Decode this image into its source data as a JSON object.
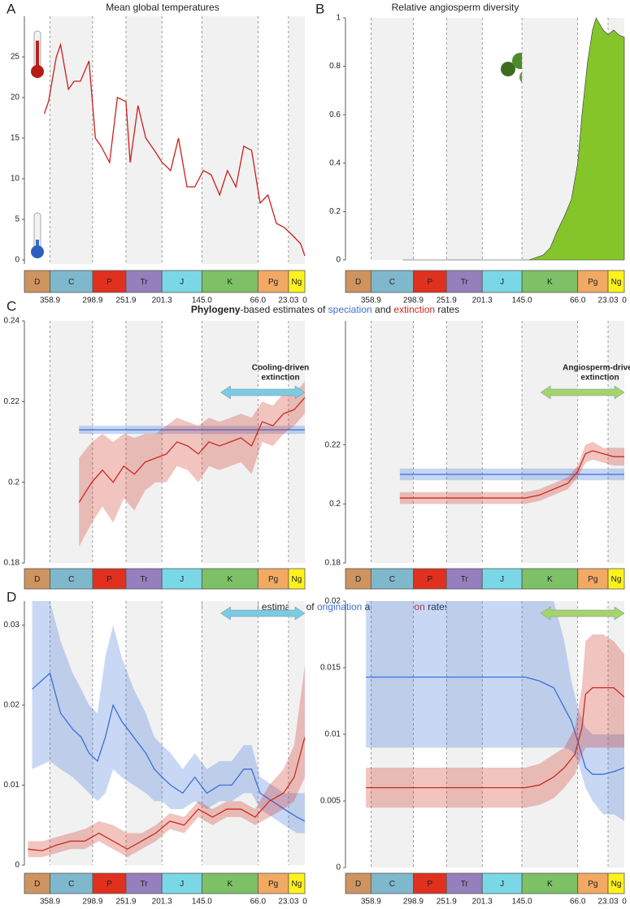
{
  "periods": [
    {
      "name": "D",
      "color": "#cd9460"
    },
    {
      "name": "C",
      "color": "#7fb8cc"
    },
    {
      "name": "P",
      "color": "#e0301e"
    },
    {
      "name": "Tr",
      "color": "#9580bd"
    },
    {
      "name": "J",
      "color": "#7ad8e6"
    },
    {
      "name": "K",
      "color": "#7dc065"
    },
    {
      "name": "Pg",
      "color": "#f2a963"
    },
    {
      "name": "Ng",
      "color": "#fff21c"
    }
  ],
  "headings": [
    {
      "parts": [
        {
          "text": "Phylogeny",
          "bold": true
        },
        {
          "text": "-based estimates of "
        },
        {
          "text": "speciation",
          "color": "#3b6fd8"
        },
        {
          "text": " and "
        },
        {
          "text": "extinction",
          "color": "#cc2a1e"
        },
        {
          "text": " rates"
        }
      ]
    },
    {
      "parts": [
        {
          "text": "Fossil",
          "bold": true
        },
        {
          "text": "-based estimates of "
        },
        {
          "text": "origination",
          "color": "#3b6fd8"
        },
        {
          "text": " and "
        },
        {
          "text": "extinction",
          "color": "#cc2a1e"
        },
        {
          "text": " rates"
        }
      ]
    }
  ],
  "chart_data": [
    {
      "type": "line",
      "panel_label": "A",
      "title": "Mean global temperatures",
      "xlim": [
        395,
        0
      ],
      "xticks": [
        358.9,
        298.9,
        251.9,
        201.3,
        {
          "value": 145,
          "label": "145.0"
        },
        {
          "value": 66,
          "label": "66.0"
        },
        23.03,
        0
      ],
      "ylim": [
        -0.5,
        30
      ],
      "yticks": [
        0,
        5,
        10,
        15,
        20,
        25
      ],
      "show_xtick_labels": true,
      "series": [
        {
          "color": "#cc1f1a",
          "x": [
            367,
            361,
            350,
            344,
            333,
            325,
            316,
            304,
            295,
            287,
            275,
            264,
            252,
            246,
            235,
            224,
            212,
            201,
            189,
            178,
            166,
            155,
            143,
            132,
            120,
            109,
            97,
            86,
            75,
            63,
            52,
            40,
            29,
            17,
            6,
            0
          ],
          "values": [
            18,
            19.5,
            25,
            26.5,
            21,
            22,
            22,
            24.5,
            15,
            14,
            12,
            20,
            19.5,
            12,
            19,
            15,
            13.5,
            12,
            11,
            15,
            9,
            9,
            11,
            10.5,
            8,
            11,
            9,
            14,
            13.5,
            7,
            8,
            4.5,
            4,
            3,
            2,
            0.5
          ]
        }
      ]
    },
    {
      "type": "area",
      "panel_label": "B",
      "title": "Relative angiosperm diversity",
      "xlim": [
        395,
        0
      ],
      "xticks": [
        358.9,
        298.9,
        251.9,
        201.3,
        {
          "value": 145,
          "label": "145.0"
        },
        {
          "value": 66,
          "label": "66.0"
        },
        23.03,
        0
      ],
      "ylim": [
        0,
        1
      ],
      "yticks": [
        0,
        0.2,
        0.4,
        0.6,
        0.8,
        1
      ],
      "show_xtick_labels": true,
      "series": [
        {
          "color": "#84c52a",
          "x": [
            314,
            200,
            135,
            125,
            115,
            105,
            95,
            85,
            75,
            66,
            60,
            52,
            45,
            40,
            30,
            23,
            15,
            8,
            0
          ],
          "values": [
            0,
            0,
            0,
            0.01,
            0.02,
            0.05,
            0.12,
            0.18,
            0.25,
            0.4,
            0.6,
            0.82,
            0.95,
            1,
            0.95,
            0.93,
            0.95,
            0.93,
            0.92
          ]
        }
      ]
    },
    {
      "type": "line",
      "panel_label": "C",
      "xlim": [
        395,
        0
      ],
      "xticks": [
        358.9,
        298.9,
        251.9,
        201.3,
        {
          "value": 145,
          "label": "145.0"
        },
        {
          "value": 66,
          "label": "66.0"
        },
        23.03,
        0
      ],
      "ylim": [
        0.18,
        0.24
      ],
      "yticks": [
        0.18,
        0.2,
        0.22,
        0.24
      ],
      "show_xtick_labels": false,
      "annotation": [
        "Cooling-driven",
        "extinction"
      ],
      "arrow_color": "#7ccbe3",
      "series": [
        {
          "color": "#3b6fd8",
          "x": [
            318,
            0
          ],
          "values": [
            0.213,
            0.213
          ],
          "lower": [
            0.212,
            0.212
          ],
          "upper": [
            0.214,
            0.214
          ]
        },
        {
          "color": "#cc2a1e",
          "x": [
            318,
            300,
            285,
            270,
            255,
            240,
            225,
            210,
            195,
            180,
            165,
            150,
            135,
            120,
            105,
            90,
            75,
            60,
            45,
            30,
            15,
            0
          ],
          "values": [
            0.195,
            0.2,
            0.203,
            0.2,
            0.204,
            0.202,
            0.205,
            0.206,
            0.207,
            0.21,
            0.209,
            0.207,
            0.21,
            0.209,
            0.21,
            0.211,
            0.209,
            0.215,
            0.214,
            0.217,
            0.218,
            0.221
          ],
          "lower": [
            0.184,
            0.19,
            0.194,
            0.19,
            0.196,
            0.193,
            0.198,
            0.2,
            0.2,
            0.204,
            0.203,
            0.2,
            0.204,
            0.203,
            0.204,
            0.205,
            0.202,
            0.21,
            0.209,
            0.212,
            0.214,
            0.217
          ],
          "upper": [
            0.206,
            0.21,
            0.212,
            0.21,
            0.212,
            0.211,
            0.212,
            0.212,
            0.214,
            0.216,
            0.215,
            0.214,
            0.216,
            0.215,
            0.216,
            0.217,
            0.216,
            0.22,
            0.219,
            0.222,
            0.222,
            0.225
          ]
        }
      ]
    },
    {
      "type": "line",
      "xlim": [
        395,
        0
      ],
      "xticks": [
        358.9,
        298.9,
        251.9,
        201.3,
        {
          "value": 145,
          "label": "145.0"
        },
        {
          "value": 66,
          "label": "66.0"
        },
        23.03,
        0
      ],
      "ylim": [
        0.18,
        0.262
      ],
      "yticks": [
        0.18,
        0.2,
        0.22
      ],
      "show_xtick_labels": false,
      "annotation": [
        "Angiosperm-driven",
        "extinction"
      ],
      "arrow_color": "#a6d46a",
      "series": [
        {
          "color": "#3b6fd8",
          "x": [
            318,
            0
          ],
          "values": [
            0.21,
            0.21
          ],
          "lower": [
            0.208,
            0.208
          ],
          "upper": [
            0.212,
            0.212
          ]
        },
        {
          "color": "#cc2a1e",
          "x": [
            318,
            250,
            200,
            140,
            120,
            100,
            80,
            66,
            55,
            45,
            30,
            15,
            0
          ],
          "values": [
            0.202,
            0.202,
            0.202,
            0.202,
            0.203,
            0.205,
            0.207,
            0.211,
            0.217,
            0.218,
            0.217,
            0.216,
            0.216
          ],
          "lower": [
            0.2,
            0.2,
            0.2,
            0.2,
            0.201,
            0.203,
            0.205,
            0.209,
            0.214,
            0.215,
            0.214,
            0.213,
            0.213
          ],
          "upper": [
            0.204,
            0.204,
            0.204,
            0.204,
            0.205,
            0.207,
            0.209,
            0.213,
            0.22,
            0.221,
            0.219,
            0.219,
            0.219
          ]
        }
      ]
    },
    {
      "type": "line",
      "panel_label": "D",
      "xlim": [
        395,
        0
      ],
      "xticks": [
        358.9,
        298.9,
        251.9,
        201.3,
        {
          "value": 145,
          "label": "145.0"
        },
        {
          "value": 66,
          "label": "66.0"
        },
        23.03,
        0
      ],
      "ylim": [
        0,
        0.033
      ],
      "yticks": [
        0,
        0.01,
        0.02,
        0.03
      ],
      "show_xtick_labels": true,
      "arrow_color": "#7ccbe3",
      "series": [
        {
          "color": "#3b6fd8",
          "x": [
            384,
            359,
            344,
            327,
            315,
            304,
            292,
            281,
            270,
            258,
            241,
            224,
            212,
            201,
            189,
            172,
            155,
            138,
            120,
            103,
            86,
            75,
            63,
            46,
            29,
            11,
            0
          ],
          "values": [
            0.022,
            0.024,
            0.019,
            0.017,
            0.016,
            0.014,
            0.013,
            0.016,
            0.02,
            0.018,
            0.016,
            0.014,
            0.012,
            0.011,
            0.01,
            0.009,
            0.011,
            0.009,
            0.01,
            0.01,
            0.012,
            0.012,
            0.009,
            0.008,
            0.007,
            0.006,
            0.0055
          ],
          "lower": [
            0.012,
            0.013,
            0.012,
            0.011,
            0.01,
            0.009,
            0.008,
            0.009,
            0.012,
            0.011,
            0.01,
            0.009,
            0.008,
            0.008,
            0.007,
            0.007,
            0.008,
            0.007,
            0.008,
            0.008,
            0.009,
            0.009,
            0.007,
            0.006,
            0.005,
            0.004,
            0.004
          ],
          "upper": [
            0.033,
            0.033,
            0.028,
            0.024,
            0.022,
            0.02,
            0.019,
            0.026,
            0.03,
            0.026,
            0.022,
            0.019,
            0.016,
            0.015,
            0.014,
            0.012,
            0.014,
            0.012,
            0.013,
            0.013,
            0.015,
            0.015,
            0.011,
            0.01,
            0.009,
            0.009,
            0.009
          ]
        },
        {
          "color": "#cc2a1e",
          "x": [
            390,
            370,
            350,
            330,
            310,
            290,
            270,
            250,
            230,
            210,
            190,
            170,
            150,
            130,
            110,
            90,
            70,
            50,
            30,
            15,
            0
          ],
          "values": [
            0.002,
            0.0018,
            0.0025,
            0.003,
            0.003,
            0.004,
            0.003,
            0.002,
            0.003,
            0.004,
            0.0055,
            0.005,
            0.007,
            0.006,
            0.007,
            0.007,
            0.006,
            0.008,
            0.009,
            0.011,
            0.016
          ],
          "lower": [
            0.001,
            0.001,
            0.0015,
            0.002,
            0.002,
            0.003,
            0.002,
            0.001,
            0.002,
            0.003,
            0.0045,
            0.004,
            0.006,
            0.005,
            0.006,
            0.006,
            0.005,
            0.006,
            0.007,
            0.008,
            0.011
          ],
          "upper": [
            0.003,
            0.003,
            0.0035,
            0.004,
            0.0045,
            0.0055,
            0.005,
            0.004,
            0.004,
            0.005,
            0.0065,
            0.006,
            0.008,
            0.007,
            0.008,
            0.008,
            0.007,
            0.01,
            0.012,
            0.015,
            0.025
          ]
        }
      ]
    },
    {
      "type": "line",
      "xlim": [
        395,
        0
      ],
      "xticks": [
        358.9,
        298.9,
        251.9,
        201.3,
        {
          "value": 145,
          "label": "145.0"
        },
        {
          "value": 66,
          "label": "66.0"
        },
        23.03,
        0
      ],
      "ylim": [
        0,
        0.02
      ],
      "yticks": [
        0,
        0.005,
        0.01,
        0.015,
        0.02
      ],
      "show_xtick_labels": true,
      "arrow_color": "#a6d46a",
      "series": [
        {
          "color": "#3b6fd8",
          "x": [
            366,
            140,
            120,
            100,
            85,
            75,
            66,
            55,
            45,
            30,
            15,
            0
          ],
          "values": [
            0.0143,
            0.0143,
            0.014,
            0.0135,
            0.012,
            0.011,
            0.0095,
            0.0075,
            0.007,
            0.007,
            0.0072,
            0.0075
          ],
          "lower": [
            0.009,
            0.009,
            0.009,
            0.009,
            0.009,
            0.0088,
            0.008,
            0.006,
            0.005,
            0.004,
            0.004,
            0.0035
          ],
          "upper": [
            0.02,
            0.02,
            0.02,
            0.02,
            0.017,
            0.014,
            0.012,
            0.0105,
            0.01,
            0.01,
            0.01,
            0.01
          ]
        },
        {
          "color": "#cc2a1e",
          "x": [
            366,
            140,
            120,
            100,
            85,
            70,
            60,
            55,
            45,
            30,
            15,
            0
          ],
          "values": [
            0.006,
            0.006,
            0.0062,
            0.0068,
            0.0075,
            0.0085,
            0.0105,
            0.013,
            0.0135,
            0.0135,
            0.0135,
            0.0128
          ],
          "lower": [
            0.0045,
            0.0045,
            0.0047,
            0.0052,
            0.006,
            0.007,
            0.0085,
            0.009,
            0.009,
            0.009,
            0.009,
            0.009
          ],
          "upper": [
            0.0075,
            0.0075,
            0.0078,
            0.0085,
            0.009,
            0.0105,
            0.0135,
            0.017,
            0.0175,
            0.0175,
            0.017,
            0.016
          ]
        }
      ]
    }
  ]
}
